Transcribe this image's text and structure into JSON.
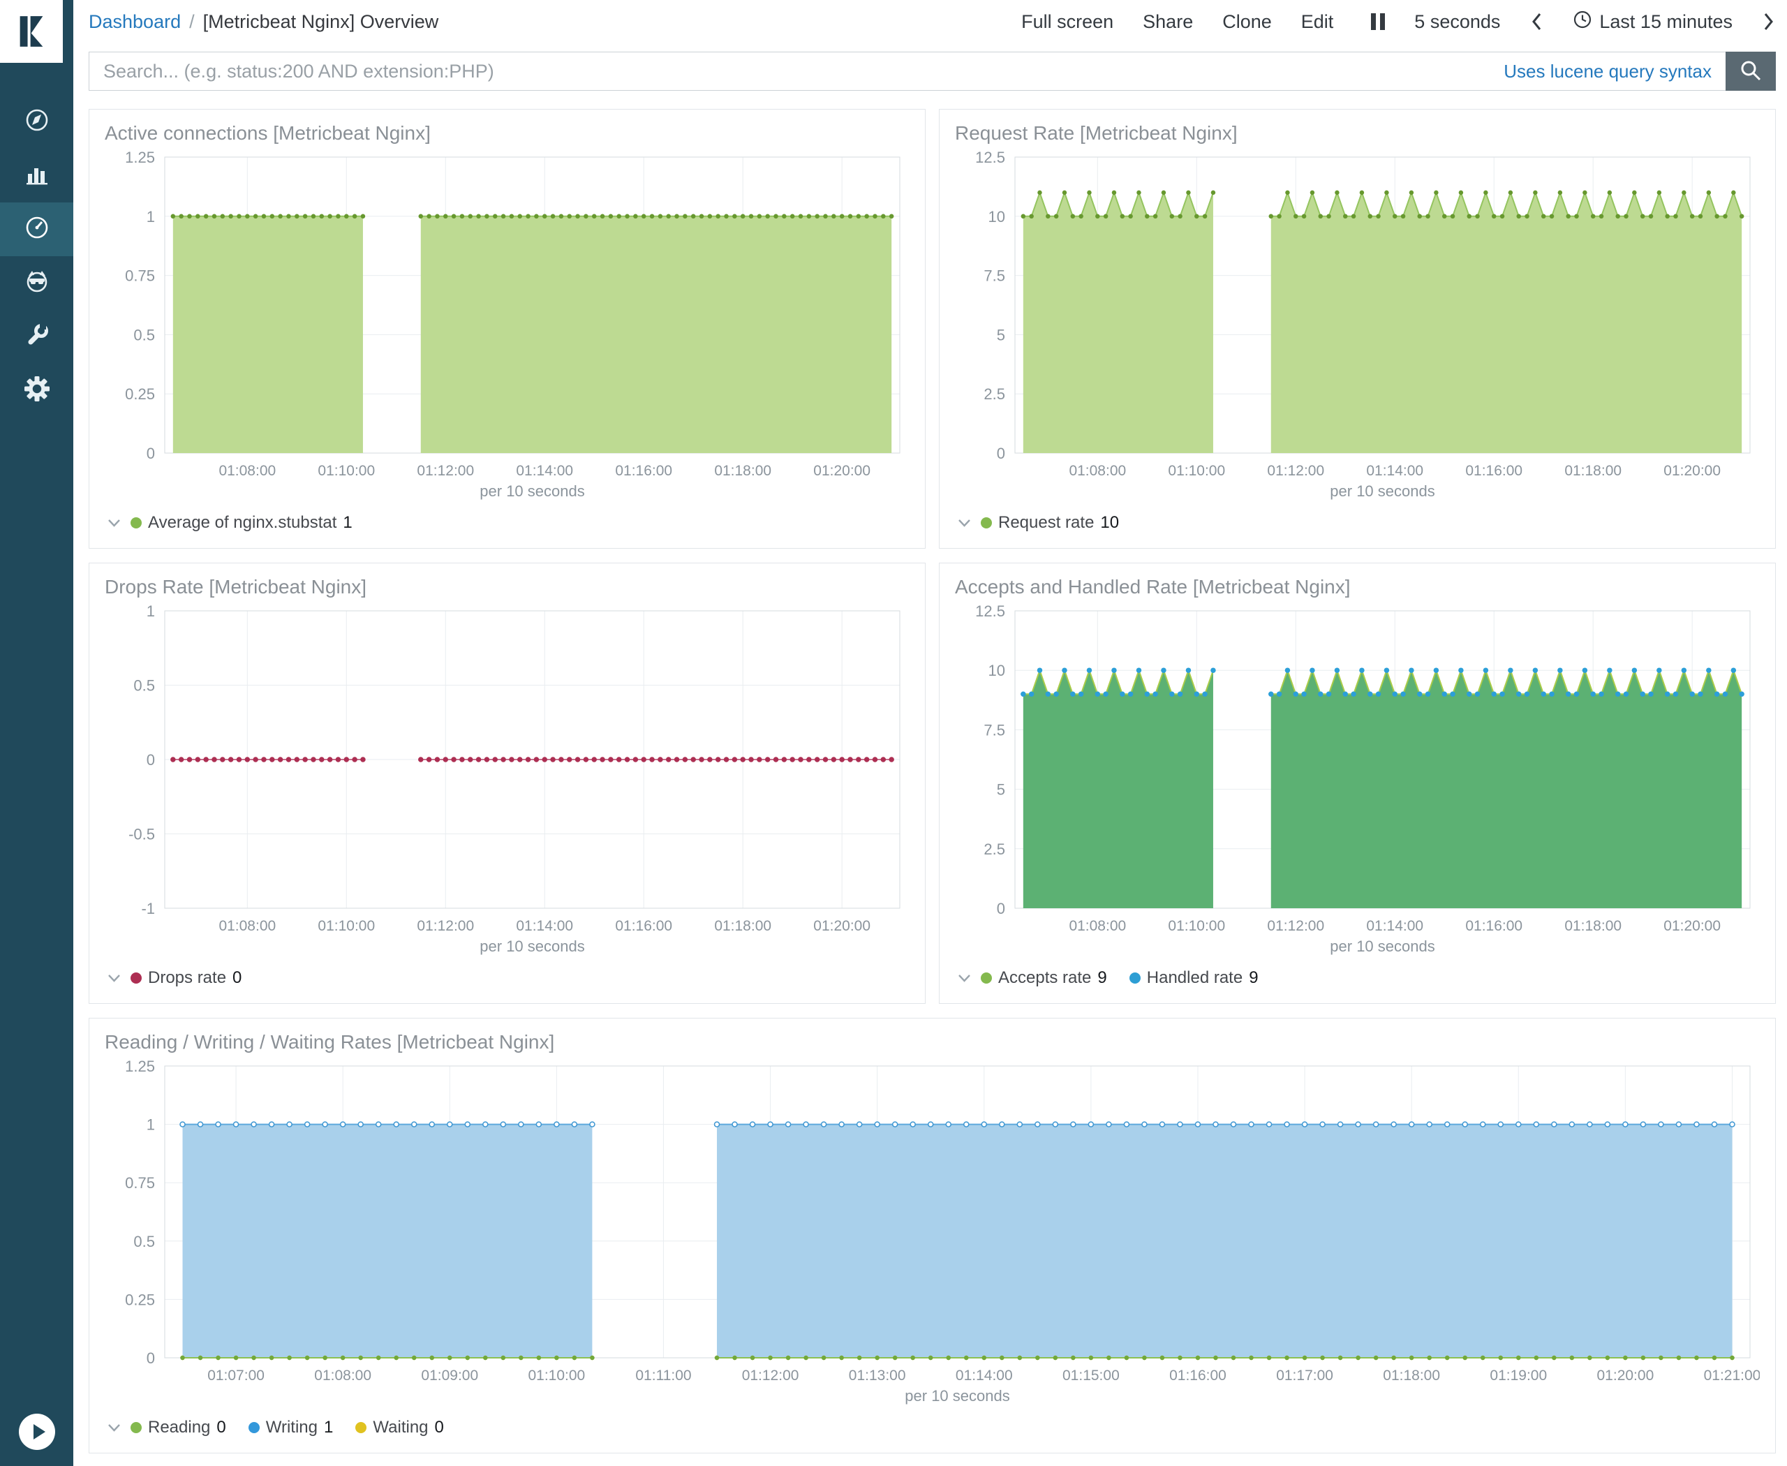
{
  "header": {
    "breadcrumb": {
      "root": "Dashboard",
      "separator": "/",
      "current": "[Metricbeat Nginx] Overview"
    },
    "topnav": [
      "Full screen",
      "Share",
      "Clone",
      "Edit"
    ],
    "refresh_interval": "5 seconds",
    "time_range": "Last 15 minutes"
  },
  "search": {
    "value": "",
    "placeholder": "Search... (e.g. status:200 AND extension:PHP)",
    "syntax_hint": "Uses lucene query syntax"
  },
  "sidebar": {
    "items": [
      {
        "id": "discover",
        "icon": "compass-icon",
        "active": false
      },
      {
        "id": "visualize",
        "icon": "bar-chart-icon",
        "active": false
      },
      {
        "id": "dashboard",
        "icon": "gauge-icon",
        "active": true
      },
      {
        "id": "timelion",
        "icon": "lion-face-icon",
        "active": false
      },
      {
        "id": "dev-tools",
        "icon": "wrench-icon",
        "active": false
      },
      {
        "id": "management",
        "icon": "gear-icon",
        "active": false
      }
    ]
  },
  "colors": {
    "sidebar_bg": "#20495b",
    "sidebar_active_bg": "#2c6173",
    "link_blue": "#2579bd",
    "search_button_bg": "#5a6972",
    "panel_border": "#e1e5e9",
    "axis_text": "#8b949c",
    "grid": "#e9edf0",
    "green_fill": "#bdda92",
    "emerald_fill": "#5cb173",
    "blue_fill": "#a9d0eb",
    "red_series": "#ad2e52"
  },
  "chart_data": [
    {
      "type": "area",
      "title": "Active connections [Metricbeat Nginx]",
      "xlabel": "per 10 seconds",
      "x_domain_sec": [
        380,
        1270
      ],
      "step_sec": 10,
      "segments_sec": [
        [
          390,
          620
        ],
        [
          690,
          1260
        ]
      ],
      "x_ticks": [
        {
          "sec": 480,
          "label": "01:08:00"
        },
        {
          "sec": 600,
          "label": "01:10:00"
        },
        {
          "sec": 720,
          "label": "01:12:00"
        },
        {
          "sec": 840,
          "label": "01:14:00"
        },
        {
          "sec": 960,
          "label": "01:16:00"
        },
        {
          "sec": 1080,
          "label": "01:18:00"
        },
        {
          "sec": 1200,
          "label": "01:20:00"
        }
      ],
      "ylim": [
        0,
        1.25
      ],
      "y_ticks": [
        0,
        0.25,
        0.5,
        0.75,
        1,
        1.25
      ],
      "series": [
        {
          "name": "Average of nginx.stubstat",
          "values_pattern": [
            1
          ],
          "fill": true,
          "fill_color": "#bdda92",
          "line_color": "#94c45f",
          "line_width": 2,
          "dot_color": "#67982f",
          "dot_style": "solid",
          "dot_radius": 2.5
        }
      ],
      "legend": [
        {
          "label": "Average of nginx.stubstat",
          "value": "1",
          "color": "#84b94e"
        }
      ]
    },
    {
      "type": "area",
      "title": "Request Rate [Metricbeat Nginx]",
      "xlabel": "per 10 seconds",
      "x_domain_sec": [
        380,
        1270
      ],
      "step_sec": 10,
      "segments_sec": [
        [
          390,
          620
        ],
        [
          690,
          1260
        ]
      ],
      "x_ticks": [
        {
          "sec": 480,
          "label": "01:08:00"
        },
        {
          "sec": 600,
          "label": "01:10:00"
        },
        {
          "sec": 720,
          "label": "01:12:00"
        },
        {
          "sec": 840,
          "label": "01:14:00"
        },
        {
          "sec": 960,
          "label": "01:16:00"
        },
        {
          "sec": 1080,
          "label": "01:18:00"
        },
        {
          "sec": 1200,
          "label": "01:20:00"
        }
      ],
      "ylim": [
        0,
        12.5
      ],
      "y_ticks": [
        0,
        2.5,
        5,
        7.5,
        10,
        12.5
      ],
      "series": [
        {
          "name": "Request rate",
          "values_pattern": [
            10,
            10,
            11
          ],
          "fill": true,
          "fill_color": "#bdda92",
          "line_color": "#94c45f",
          "line_width": 2,
          "dot_color": "#67982f",
          "dot_style": "solid",
          "dot_radius": 2.5
        }
      ],
      "legend": [
        {
          "label": "Request rate",
          "value": "10",
          "color": "#84b94e"
        }
      ]
    },
    {
      "type": "line",
      "title": "Drops Rate [Metricbeat Nginx]",
      "xlabel": "per 10 seconds",
      "x_domain_sec": [
        380,
        1270
      ],
      "step_sec": 10,
      "segments_sec": [
        [
          390,
          620
        ],
        [
          690,
          1260
        ]
      ],
      "x_ticks": [
        {
          "sec": 480,
          "label": "01:08:00"
        },
        {
          "sec": 600,
          "label": "01:10:00"
        },
        {
          "sec": 720,
          "label": "01:12:00"
        },
        {
          "sec": 840,
          "label": "01:14:00"
        },
        {
          "sec": 960,
          "label": "01:16:00"
        },
        {
          "sec": 1080,
          "label": "01:18:00"
        },
        {
          "sec": 1200,
          "label": "01:20:00"
        }
      ],
      "ylim": [
        -1,
        1
      ],
      "y_ticks": [
        -1,
        -0.5,
        0,
        0.5,
        1
      ],
      "series": [
        {
          "name": "Drops rate",
          "values_pattern": [
            0
          ],
          "fill": false,
          "line_color": "#b23f63",
          "line_width": 1.5,
          "dot_color": "#ad2e52",
          "dot_style": "solid",
          "dot_radius": 3
        }
      ],
      "legend": [
        {
          "label": "Drops rate",
          "value": "0",
          "color": "#ad2e52"
        }
      ]
    },
    {
      "type": "area",
      "title": "Accepts and Handled Rate [Metricbeat Nginx]",
      "xlabel": "per 10 seconds",
      "x_domain_sec": [
        380,
        1270
      ],
      "step_sec": 10,
      "segments_sec": [
        [
          390,
          620
        ],
        [
          690,
          1260
        ]
      ],
      "x_ticks": [
        {
          "sec": 480,
          "label": "01:08:00"
        },
        {
          "sec": 600,
          "label": "01:10:00"
        },
        {
          "sec": 720,
          "label": "01:12:00"
        },
        {
          "sec": 840,
          "label": "01:14:00"
        },
        {
          "sec": 960,
          "label": "01:16:00"
        },
        {
          "sec": 1080,
          "label": "01:18:00"
        },
        {
          "sec": 1200,
          "label": "01:20:00"
        }
      ],
      "ylim": [
        0,
        12.5
      ],
      "y_ticks": [
        0,
        2.5,
        5,
        7.5,
        10,
        12.5
      ],
      "series": [
        {
          "name": "Accepts rate",
          "values_pattern": [
            9,
            9,
            10
          ],
          "fill": true,
          "fill_color": "#5cb173",
          "line_color": "#a9cb49",
          "line_width": 2,
          "dot_color": "#4f9e55",
          "dot_style": "solid",
          "dot_radius": 2.5
        },
        {
          "name": "Handled rate",
          "values_pattern": [
            9,
            9,
            10
          ],
          "fill": false,
          "line_color": "",
          "line_width": 0,
          "dot_color": "#2c9fd8",
          "dot_style": "solid",
          "dot_radius": 3
        }
      ],
      "legend": [
        {
          "label": "Accepts rate",
          "value": "9",
          "color": "#84b94e"
        },
        {
          "label": "Handled rate",
          "value": "9",
          "color": "#2d9ed4"
        }
      ]
    },
    {
      "type": "area",
      "title": "Reading / Writing / Waiting Rates [Metricbeat Nginx]",
      "xlabel": "per 10 seconds",
      "x_domain_sec": [
        380,
        1270
      ],
      "step_sec": 10,
      "segments_sec": [
        [
          390,
          620
        ],
        [
          690,
          1260
        ]
      ],
      "x_ticks": [
        {
          "sec": 420,
          "label": "01:07:00"
        },
        {
          "sec": 480,
          "label": "01:08:00"
        },
        {
          "sec": 540,
          "label": "01:09:00"
        },
        {
          "sec": 600,
          "label": "01:10:00"
        },
        {
          "sec": 660,
          "label": "01:11:00"
        },
        {
          "sec": 720,
          "label": "01:12:00"
        },
        {
          "sec": 780,
          "label": "01:13:00"
        },
        {
          "sec": 840,
          "label": "01:14:00"
        },
        {
          "sec": 900,
          "label": "01:15:00"
        },
        {
          "sec": 960,
          "label": "01:16:00"
        },
        {
          "sec": 1020,
          "label": "01:17:00"
        },
        {
          "sec": 1080,
          "label": "01:18:00"
        },
        {
          "sec": 1140,
          "label": "01:19:00"
        },
        {
          "sec": 1200,
          "label": "01:20:00"
        },
        {
          "sec": 1260,
          "label": "01:21:00"
        }
      ],
      "ylim": [
        0,
        1.25
      ],
      "y_ticks": [
        0,
        0.25,
        0.5,
        0.75,
        1,
        1.25
      ],
      "series": [
        {
          "name": "Waiting",
          "values_pattern": [
            0
          ],
          "fill": false,
          "line_color": "#dec437",
          "line_width": 2,
          "dot_color": "#d4ba25",
          "dot_style": "solid",
          "dot_radius": 2.5
        },
        {
          "name": "Reading",
          "values_pattern": [
            0
          ],
          "fill": false,
          "line_color": "#8cc152",
          "line_width": 2,
          "dot_color": "#71a83b",
          "dot_style": "solid",
          "dot_radius": 2.5
        },
        {
          "name": "Writing",
          "values_pattern": [
            1
          ],
          "fill": true,
          "fill_color": "#a9d0eb",
          "line_color": "#5ea9dc",
          "line_width": 2,
          "dot_color": "#3d96d2",
          "dot_style": "hollow",
          "dot_radius": 3.5
        }
      ],
      "legend": [
        {
          "label": "Reading",
          "value": "0",
          "color": "#84b94e"
        },
        {
          "label": "Writing",
          "value": "1",
          "color": "#3398db"
        },
        {
          "label": "Waiting",
          "value": "0",
          "color": "#e0c220"
        }
      ]
    }
  ]
}
